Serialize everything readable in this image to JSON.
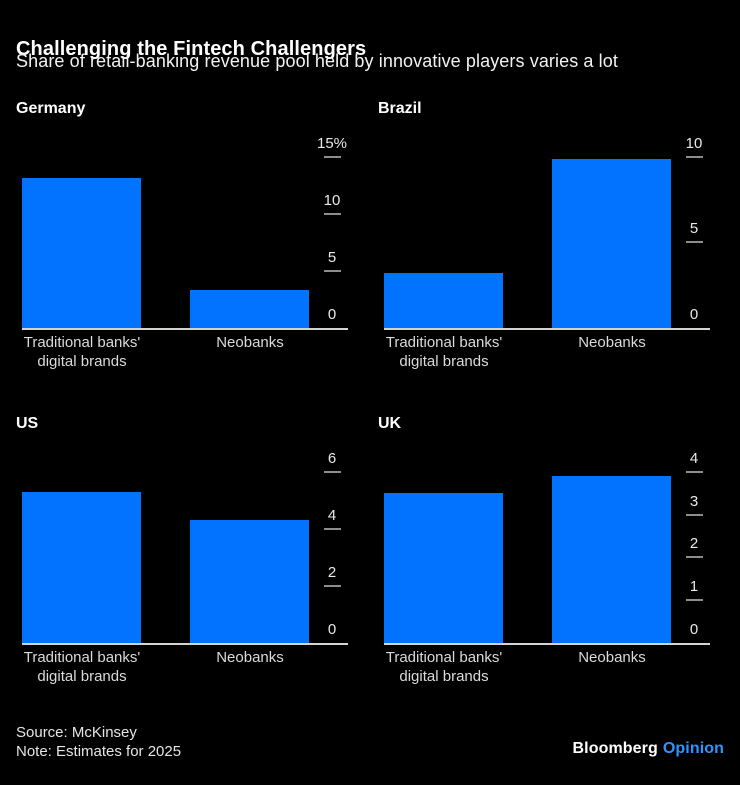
{
  "header": {
    "title": "Challenging the Fintech Challengers",
    "subtitle": "Share of retail-banking revenue pool held by innovative players varies a lot"
  },
  "chart_data": [
    {
      "type": "bar",
      "title": "Germany",
      "categories": [
        [
          "Traditional banks'",
          "digital brands"
        ],
        [
          "Neobanks"
        ]
      ],
      "values": [
        13.2,
        3.3
      ],
      "unit": "%",
      "ylim": [
        0,
        15
      ],
      "yticks": [
        0,
        5,
        10,
        15
      ],
      "ytick_labels": [
        "0",
        "5",
        "10",
        "15%"
      ],
      "grid": false,
      "axis_side": "right"
    },
    {
      "type": "bar",
      "title": "Brazil",
      "categories": [
        [
          "Traditional banks'",
          "digital brands"
        ],
        [
          "Neobanks"
        ]
      ],
      "values": [
        3.2,
        9.9
      ],
      "unit": "%",
      "ylim": [
        0,
        10
      ],
      "yticks": [
        0,
        5,
        10
      ],
      "ytick_labels": [
        "0",
        "5",
        "10"
      ],
      "grid": false,
      "axis_side": "right"
    },
    {
      "type": "bar",
      "title": "US",
      "categories": [
        [
          "Traditional banks'",
          "digital brands"
        ],
        [
          "Neobanks"
        ]
      ],
      "values": [
        5.3,
        4.3
      ],
      "unit": "%",
      "ylim": [
        0,
        6
      ],
      "yticks": [
        0,
        2,
        4,
        6
      ],
      "ytick_labels": [
        "0",
        "2",
        "4",
        "6"
      ],
      "grid": false,
      "axis_side": "right"
    },
    {
      "type": "bar",
      "title": "UK",
      "categories": [
        [
          "Traditional banks'",
          "digital brands"
        ],
        [
          "Neobanks"
        ]
      ],
      "values": [
        3.5,
        3.9
      ],
      "unit": "%",
      "ylim": [
        0,
        4
      ],
      "yticks": [
        0,
        1,
        2,
        3,
        4
      ],
      "ytick_labels": [
        "0",
        "1",
        "2",
        "3",
        "4"
      ],
      "grid": false,
      "axis_side": "right"
    }
  ],
  "footer": {
    "source": "Source: McKinsey",
    "note": "Note: Estimates for 2025",
    "brand_primary": "Bloomberg",
    "brand_secondary": "Opinion"
  },
  "colors": {
    "background": "#000000",
    "bar": "#0173ff",
    "brand_accent": "#2e94fe",
    "axis_line": "#d5d3d0",
    "tick_dash": "#8d8d8d",
    "text_primary": "#ffffff",
    "text_secondary": "#dcdad7"
  }
}
